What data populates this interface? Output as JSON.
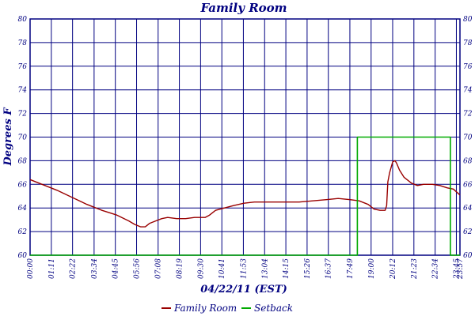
{
  "chart_data": {
    "type": "line",
    "title": "Family Room",
    "xlabel": "04/22/11 (EST)",
    "ylabel": "Degrees F",
    "ylim": [
      60,
      80
    ],
    "yticks": [
      60,
      62,
      64,
      66,
      68,
      70,
      72,
      74,
      76,
      78,
      80
    ],
    "xlim": [
      0,
      1437
    ],
    "xticks": [
      {
        "m": 0,
        "label": "00:00"
      },
      {
        "m": 71,
        "label": "01:11"
      },
      {
        "m": 142,
        "label": "02:22"
      },
      {
        "m": 214,
        "label": "03:34"
      },
      {
        "m": 285,
        "label": "04:45"
      },
      {
        "m": 356,
        "label": "05:56"
      },
      {
        "m": 428,
        "label": "07:08"
      },
      {
        "m": 499,
        "label": "08:19"
      },
      {
        "m": 570,
        "label": "09:30"
      },
      {
        "m": 641,
        "label": "10:41"
      },
      {
        "m": 713,
        "label": "11:53"
      },
      {
        "m": 784,
        "label": "13:04"
      },
      {
        "m": 855,
        "label": "14:15"
      },
      {
        "m": 926,
        "label": "15:26"
      },
      {
        "m": 997,
        "label": "16:37"
      },
      {
        "m": 1069,
        "label": "17:49"
      },
      {
        "m": 1140,
        "label": "19:00"
      },
      {
        "m": 1212,
        "label": "20:12"
      },
      {
        "m": 1283,
        "label": "21:23"
      },
      {
        "m": 1354,
        "label": "22:34"
      },
      {
        "m": 1425,
        "label": "23:45"
      },
      {
        "m": 1437,
        "label": "23:57"
      }
    ],
    "grid": true,
    "legend_position": "bottom",
    "series": [
      {
        "name": "Family Room",
        "color": "#990000",
        "points": [
          [
            0,
            66.4
          ],
          [
            40,
            66.0
          ],
          [
            90,
            65.5
          ],
          [
            140,
            64.9
          ],
          [
            190,
            64.3
          ],
          [
            240,
            63.8
          ],
          [
            290,
            63.4
          ],
          [
            330,
            62.9
          ],
          [
            350,
            62.6
          ],
          [
            370,
            62.4
          ],
          [
            385,
            62.4
          ],
          [
            400,
            62.7
          ],
          [
            420,
            62.9
          ],
          [
            440,
            63.1
          ],
          [
            460,
            63.2
          ],
          [
            490,
            63.1
          ],
          [
            520,
            63.1
          ],
          [
            550,
            63.2
          ],
          [
            585,
            63.2
          ],
          [
            600,
            63.4
          ],
          [
            620,
            63.8
          ],
          [
            650,
            64.0
          ],
          [
            680,
            64.2
          ],
          [
            715,
            64.4
          ],
          [
            750,
            64.5
          ],
          [
            800,
            64.5
          ],
          [
            850,
            64.5
          ],
          [
            900,
            64.5
          ],
          [
            945,
            64.6
          ],
          [
            990,
            64.7
          ],
          [
            1030,
            64.8
          ],
          [
            1070,
            64.7
          ],
          [
            1100,
            64.6
          ],
          [
            1130,
            64.3
          ],
          [
            1150,
            63.9
          ],
          [
            1170,
            63.8
          ],
          [
            1187,
            63.8
          ],
          [
            1192,
            64.2
          ],
          [
            1196,
            66.2
          ],
          [
            1202,
            67.0
          ],
          [
            1212,
            67.9
          ],
          [
            1220,
            68.0
          ],
          [
            1225,
            67.8
          ],
          [
            1235,
            67.2
          ],
          [
            1250,
            66.6
          ],
          [
            1275,
            66.1
          ],
          [
            1295,
            65.9
          ],
          [
            1315,
            66.0
          ],
          [
            1345,
            66.0
          ],
          [
            1370,
            65.9
          ],
          [
            1395,
            65.7
          ],
          [
            1415,
            65.6
          ],
          [
            1437,
            65.1
          ]
        ]
      },
      {
        "name": "Setback",
        "color": "#00aa00",
        "points": [
          [
            0,
            60
          ],
          [
            1094,
            60
          ],
          [
            1094,
            70
          ],
          [
            1405,
            70
          ],
          [
            1405,
            60
          ],
          [
            1437,
            60
          ]
        ]
      }
    ]
  }
}
